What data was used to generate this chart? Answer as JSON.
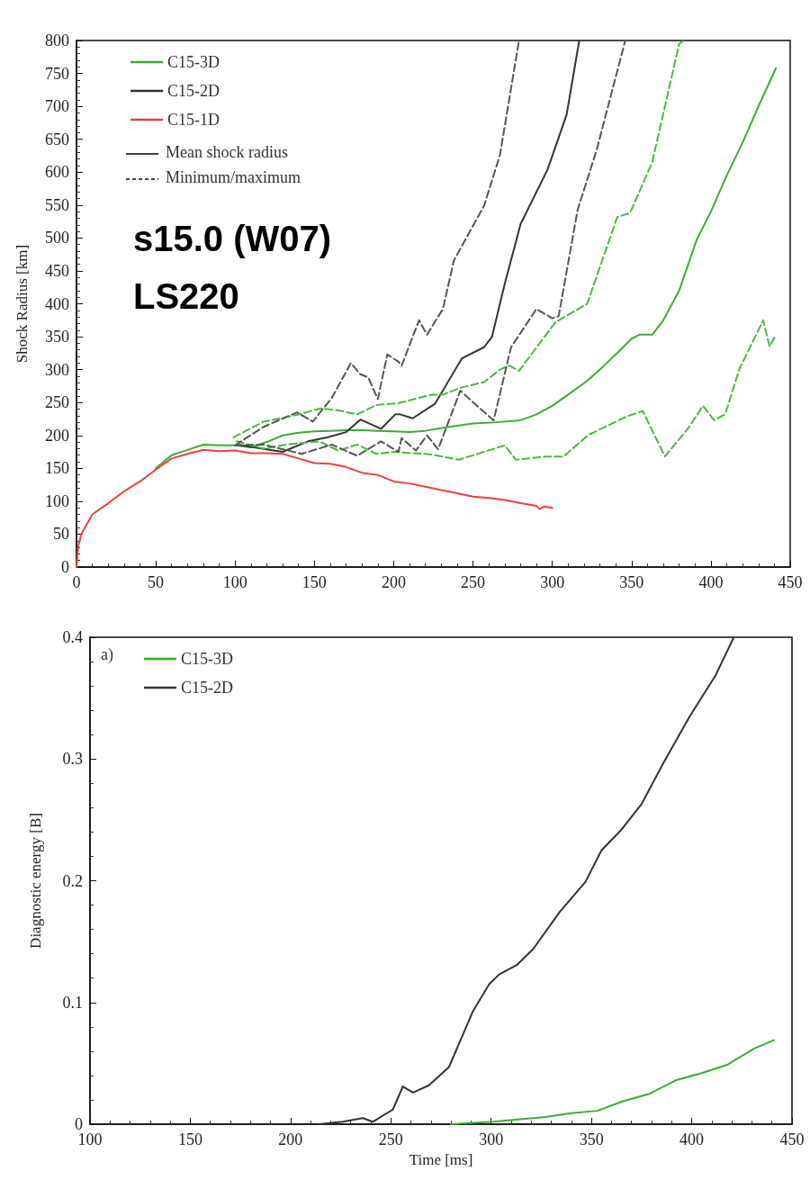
{
  "chart_data": [
    {
      "type": "line",
      "title": "s15.0 (W07)\nLS220",
      "ylabel": "Shock Radius [km]",
      "xlim": [
        0,
        450
      ],
      "xticks": [
        0,
        50,
        100,
        150,
        200,
        250,
        300,
        350,
        400,
        450
      ],
      "ylim": [
        0,
        800
      ],
      "yticks": [
        0,
        50,
        100,
        150,
        200,
        250,
        300,
        350,
        400,
        450,
        500,
        550,
        600,
        650,
        700,
        750,
        800
      ],
      "grid": false,
      "legend": "top left",
      "marker": "none",
      "annotations": [
        "Mean shock radius",
        "Minimum/maximum"
      ],
      "series": [
        {
          "name": "C15-3D",
          "color": "#3cac34",
          "line_style": "solid",
          "x": [
            50,
            60,
            70,
            80,
            90,
            100,
            110,
            120,
            130,
            140,
            150,
            160,
            170,
            180,
            190,
            200,
            210,
            220,
            232,
            250,
            265,
            280,
            290,
            300,
            310,
            321,
            330,
            340,
            350,
            355,
            363,
            370,
            380,
            391,
            400,
            410,
            420,
            430,
            441
          ],
          "values": [
            150,
            170,
            178,
            186,
            185,
            185,
            182,
            190,
            200,
            204,
            206,
            207,
            208,
            208,
            207,
            206,
            205,
            207,
            212,
            218,
            220,
            223,
            232,
            245,
            262,
            281,
            300,
            323,
            347,
            353,
            353,
            375,
            420,
            497,
            540,
            595,
            645,
            700,
            758
          ]
        },
        {
          "name": "C15-2D",
          "color": "#333333",
          "line_style": "solid",
          "x": [
            101,
            130,
            146,
            158,
            170,
            179,
            192,
            201,
            204,
            212,
            226,
            243,
            257,
            262,
            270,
            280,
            297,
            309,
            317
          ],
          "values": [
            186,
            175,
            191,
            197,
            205,
            224,
            210,
            232,
            232,
            226,
            248,
            317,
            334,
            350,
            430,
            521,
            604,
            687,
            800
          ]
        },
        {
          "name": "C15-1D",
          "color": "#f04040",
          "line_style": "solid",
          "x": [
            0,
            1,
            3,
            10,
            20,
            30,
            40,
            50,
            60,
            70,
            80,
            90,
            100,
            110,
            120,
            130,
            140,
            150,
            160,
            170,
            180,
            190,
            200,
            210,
            220,
            230,
            240,
            250,
            260,
            270,
            280,
            290,
            292,
            295,
            300
          ],
          "values": [
            0,
            30,
            50,
            80,
            97,
            115,
            130,
            148,
            165,
            172,
            178,
            176,
            177,
            173,
            173,
            172,
            165,
            158,
            157,
            152,
            143,
            140,
            130,
            127,
            122,
            117,
            112,
            107,
            105,
            102,
            97,
            93,
            88,
            92,
            90
          ]
        },
        {
          "color": "#4cb844",
          "line_style": "dashed",
          "x": [
            99,
            118,
            137,
            154,
            165,
            177,
            189,
            203,
            224,
            231,
            243,
            257,
            267,
            273,
            279,
            302,
            322,
            341,
            349,
            363,
            380,
            383
          ],
          "values": [
            197,
            221,
            230,
            241,
            238,
            232,
            246,
            249,
            262,
            262,
            273,
            281,
            300,
            306,
            298,
            372,
            400,
            532,
            538,
            615,
            795,
            800
          ]
        },
        {
          "color": "#4cb844",
          "line_style": "dashed",
          "x": [
            101,
            118,
            132,
            153,
            165,
            177,
            189,
            201,
            224,
            241,
            270,
            277,
            296,
            307,
            323,
            347,
            357,
            371,
            386,
            395,
            402,
            409,
            418,
            433,
            437,
            441
          ],
          "values": [
            191,
            180,
            186,
            191,
            177,
            186,
            172,
            175,
            171,
            163,
            185,
            163,
            168,
            168,
            201,
            229,
            237,
            168,
            212,
            245,
            223,
            232,
            301,
            375,
            335,
            353
          ]
        },
        {
          "color": "#555555",
          "line_style": "dashed",
          "x": [
            100,
            118,
            139,
            149,
            161,
            173,
            179,
            184,
            190,
            196,
            203,
            205,
            216,
            221,
            231,
            238,
            257,
            267,
            279
          ],
          "values": [
            185,
            213,
            235,
            221,
            257,
            310,
            293,
            288,
            255,
            323,
            312,
            306,
            375,
            353,
            392,
            466,
            549,
            626,
            800
          ]
        },
        {
          "color": "#555555",
          "line_style": "dashed",
          "x": [
            100,
            118,
            142,
            161,
            177,
            192,
            203,
            205,
            214,
            221,
            228,
            242,
            252,
            263,
            274,
            290,
            300,
            304,
            316,
            328,
            346
          ],
          "values": [
            185,
            186,
            172,
            186,
            169,
            191,
            175,
            196,
            177,
            200,
            179,
            268,
            246,
            223,
            334,
            392,
            378,
            381,
            543,
            634,
            800
          ]
        }
      ]
    },
    {
      "type": "line",
      "xlabel": "Time [ms]",
      "ylabel": "Diagnostic energy [B]",
      "xlim": [
        100,
        450
      ],
      "xticks": [
        100,
        150,
        200,
        250,
        300,
        350,
        400,
        450
      ],
      "ylim": [
        0,
        0.4
      ],
      "yticks": [
        0,
        0.1,
        0.2,
        0.3,
        0.4
      ],
      "grid": false,
      "legend": "top left",
      "marker": "none",
      "annotations": [
        "a)"
      ],
      "series": [
        {
          "name": "C15-3D",
          "color": "#3cac34",
          "line_style": "solid",
          "x": [
            280,
            301,
            327,
            340,
            353,
            366,
            379,
            392,
            405,
            418,
            431,
            441
          ],
          "values": [
            0,
            0.002,
            0.006,
            0.009,
            0.011,
            0.019,
            0.025,
            0.036,
            0.042,
            0.049,
            0.062,
            0.069
          ]
        },
        {
          "name": "C15-2D",
          "color": "#333333",
          "line_style": "solid",
          "x": [
            214,
            226,
            236,
            241,
            251,
            256,
            261,
            269,
            279,
            291,
            299,
            304,
            313,
            321,
            334,
            347,
            355,
            365,
            375,
            386,
            399,
            412,
            421
          ],
          "values": [
            0,
            0.002,
            0.005,
            0.002,
            0.012,
            0.031,
            0.026,
            0.032,
            0.047,
            0.093,
            0.115,
            0.123,
            0.131,
            0.144,
            0.174,
            0.199,
            0.225,
            0.242,
            0.263,
            0.297,
            0.335,
            0.369,
            0.4
          ]
        }
      ]
    }
  ]
}
